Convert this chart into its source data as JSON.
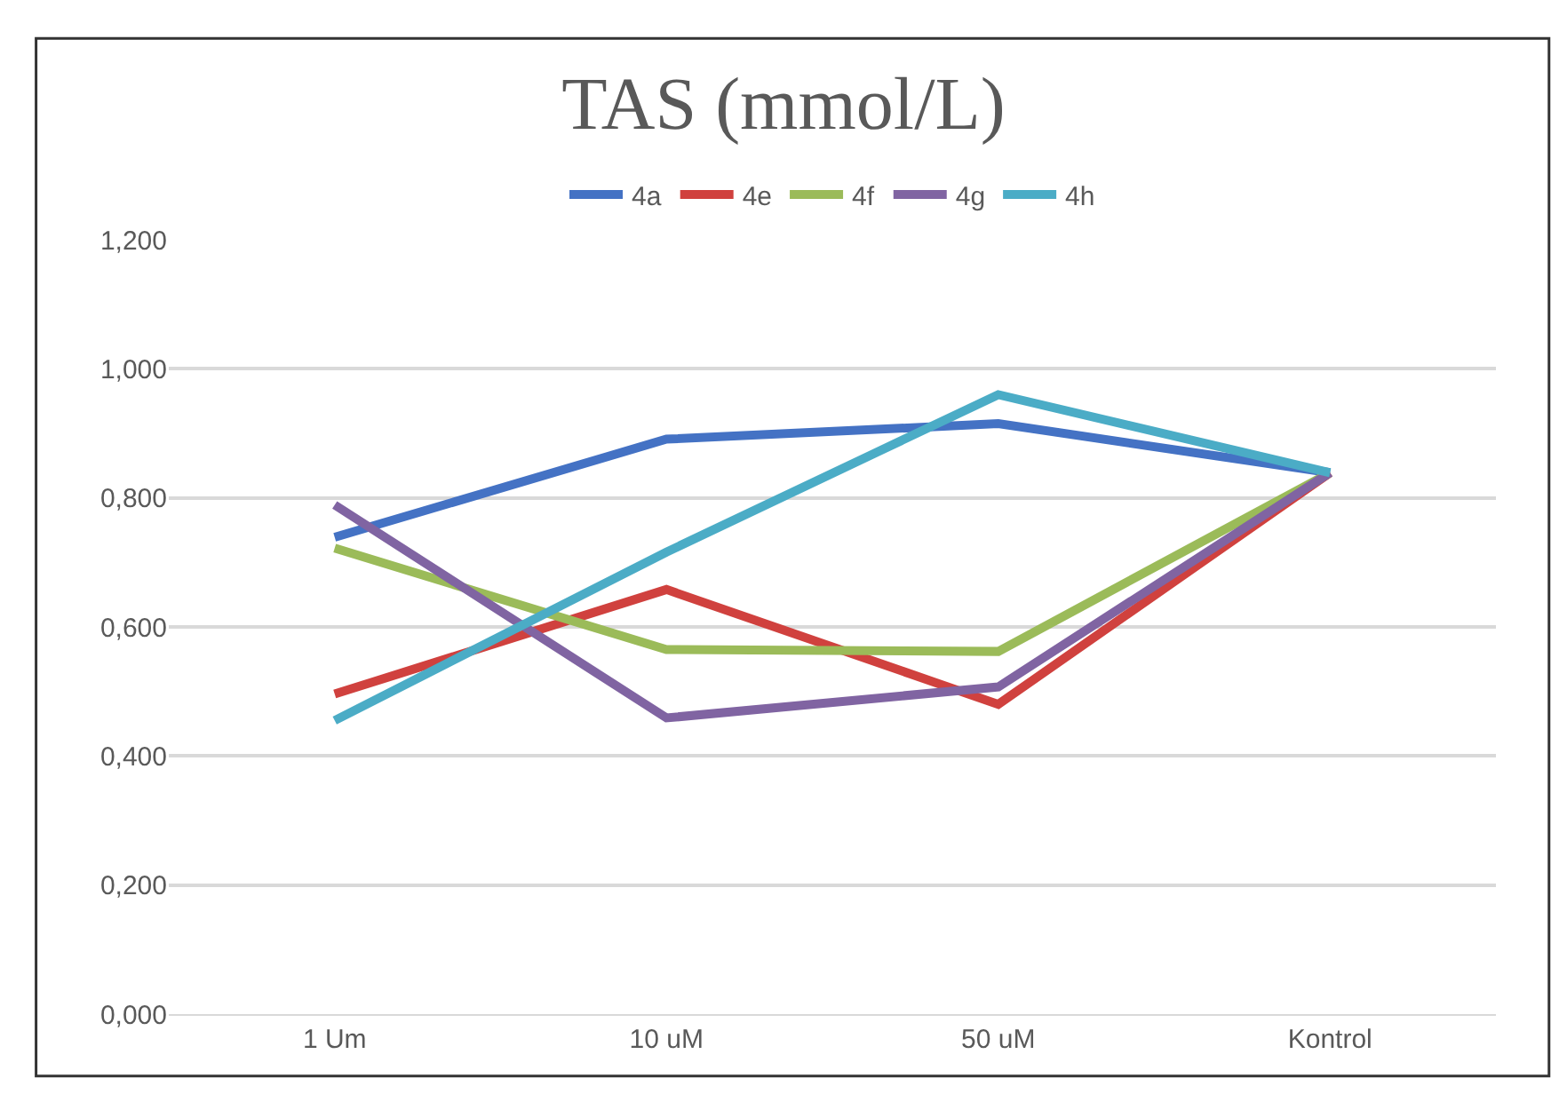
{
  "chart_data": {
    "type": "line",
    "title": "TAS (mmol/L)",
    "categories": [
      "1 Um",
      "10 uM",
      "50 uM",
      "Kontrol"
    ],
    "series": [
      {
        "name": "4a",
        "color": "#4472c4",
        "values": [
          0.739,
          0.891,
          0.915,
          0.839
        ]
      },
      {
        "name": "4e",
        "color": "#d0413e",
        "values": [
          0.496,
          0.658,
          0.48,
          0.839
        ]
      },
      {
        "name": "4f",
        "color": "#9bbb59",
        "values": [
          0.722,
          0.565,
          0.562,
          0.839
        ]
      },
      {
        "name": "4g",
        "color": "#8064a2",
        "values": [
          0.789,
          0.459,
          0.507,
          0.839
        ]
      },
      {
        "name": "4h",
        "color": "#4bacc6",
        "values": [
          0.455,
          0.716,
          0.96,
          0.839
        ]
      }
    ],
    "ylim": [
      0,
      1.2
    ],
    "yticks": [
      {
        "value": 0,
        "label": "0,000"
      },
      {
        "value": 0.2,
        "label": "0,200"
      },
      {
        "value": 0.4,
        "label": "0,400"
      },
      {
        "value": 0.6,
        "label": "0,600"
      },
      {
        "value": 0.8,
        "label": "0,800"
      },
      {
        "value": 1.0,
        "label": "1,000"
      },
      {
        "value": 1.2,
        "label": "1,200"
      }
    ],
    "grid": "y",
    "legend": "top",
    "marker": "none",
    "line_style": "solid"
  }
}
